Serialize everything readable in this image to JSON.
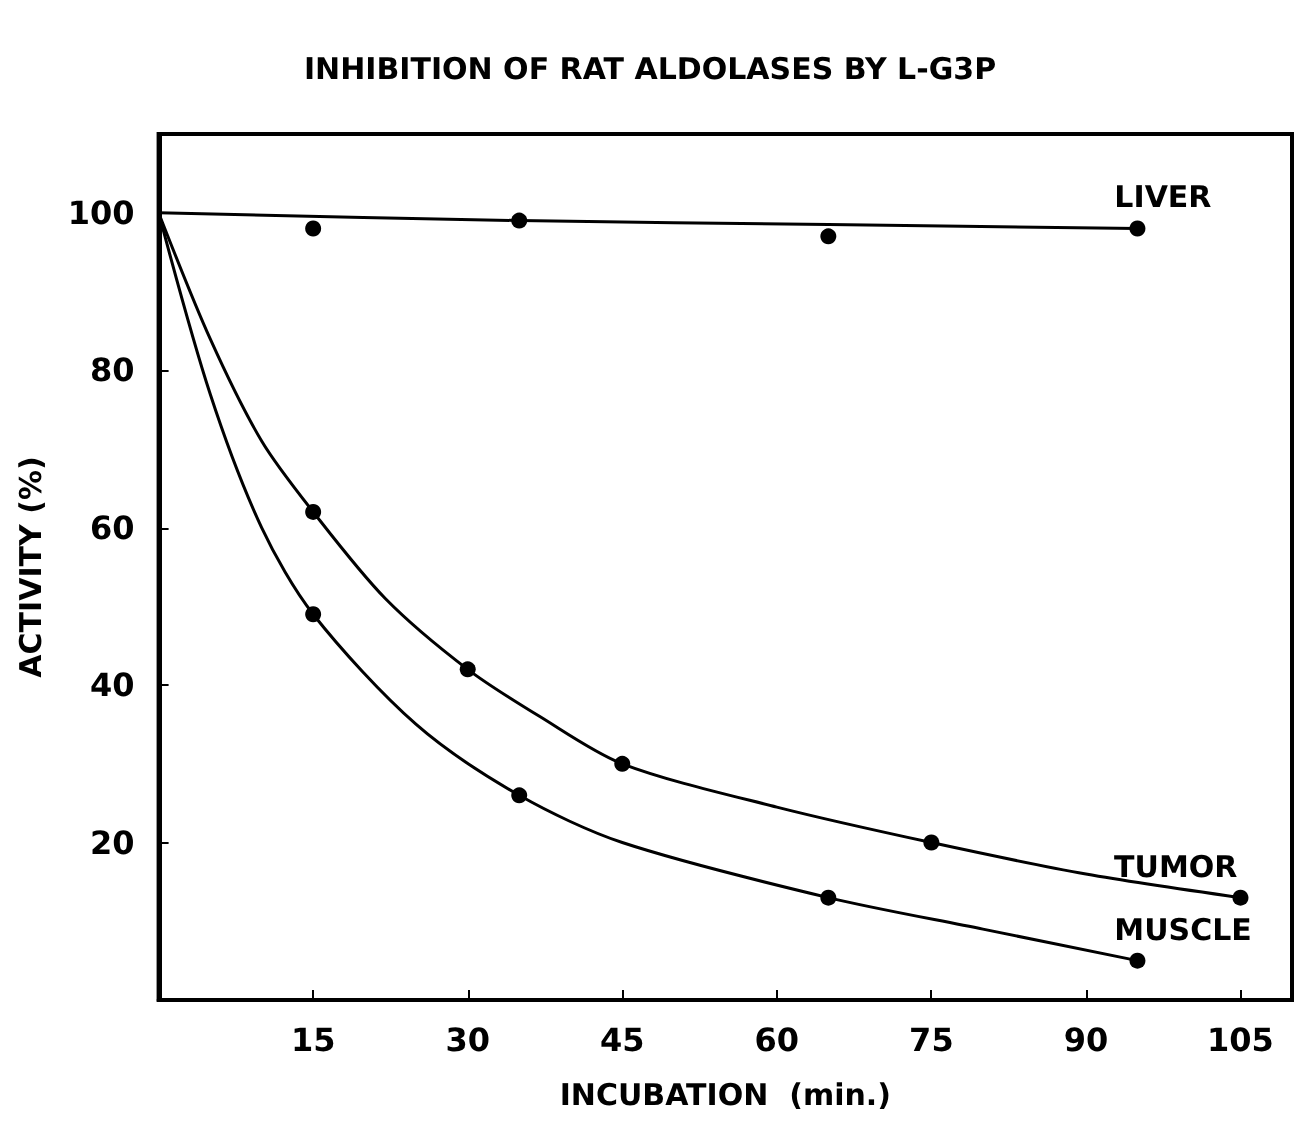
{
  "chart_data": {
    "type": "scatter",
    "title": "INHIBITION OF RAT ALDOLASES BY L-G3P",
    "xlabel": "INCUBATION  (min.)",
    "ylabel": "ACTIVITY (%)",
    "xlim": [
      0,
      110
    ],
    "xticks": [
      15,
      30,
      45,
      60,
      75,
      90,
      105
    ],
    "ylim": [
      0,
      110
    ],
    "yticks": [
      20,
      40,
      60,
      80,
      100
    ],
    "grid": false,
    "legend": false,
    "series": [
      {
        "name": "LIVER",
        "marker": "circle",
        "color": "#000000",
        "x": [
          15,
          35,
          65,
          95
        ],
        "values": [
          98,
          99,
          97,
          98
        ]
      },
      {
        "type": "line",
        "marker": "none",
        "color": "#000000",
        "x": [
          0,
          35,
          65,
          95
        ],
        "values": [
          100,
          99,
          98.5,
          98
        ]
      },
      {
        "name": "TUMOR",
        "marker": "circle",
        "color": "#000000",
        "x": [
          15,
          30,
          45,
          75,
          105
        ],
        "values": [
          62,
          42,
          30,
          20,
          13
        ]
      },
      {
        "type": "line",
        "marker": "none",
        "color": "#000000",
        "x": [
          0,
          5,
          10,
          15,
          22,
          30,
          37,
          45,
          60,
          75,
          90,
          105
        ],
        "values": [
          100,
          84,
          71,
          62,
          51,
          42,
          36,
          30,
          24.5,
          20,
          16,
          13
        ]
      },
      {
        "name": "MUSCLE",
        "marker": "circle",
        "color": "#000000",
        "x": [
          15,
          35,
          65,
          95
        ],
        "values": [
          49,
          26,
          13,
          5
        ]
      },
      {
        "type": "line",
        "marker": "none",
        "color": "#000000",
        "x": [
          0,
          5,
          10,
          15,
          25,
          35,
          45,
          65,
          80,
          95
        ],
        "values": [
          100,
          77,
          60,
          49,
          35,
          26,
          20,
          13,
          9,
          5
        ]
      }
    ]
  }
}
